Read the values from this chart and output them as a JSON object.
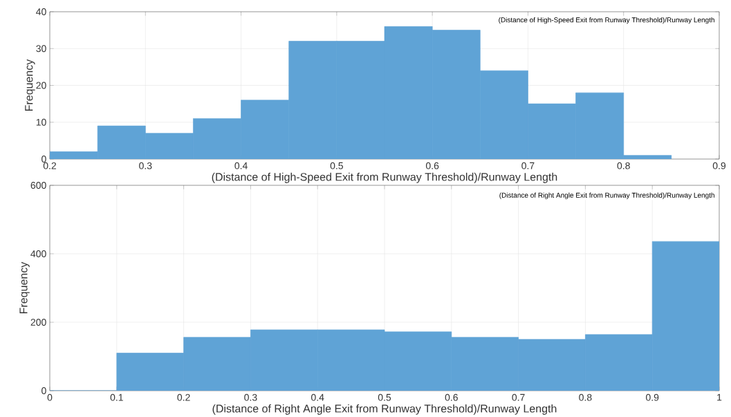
{
  "chart_data": [
    {
      "type": "histogram",
      "xlabel": "(Distance of High-Speed Exit from Runway Threshold)/Runway Length",
      "ylabel": "Frequency",
      "annotations": [
        "(Distance of High-Speed Exit from Runway Threshold)/Runway Length"
      ],
      "color": "#5fa3d6",
      "bins": [
        0.2,
        0.25,
        0.3,
        0.35,
        0.4,
        0.45,
        0.5,
        0.55,
        0.6,
        0.65,
        0.7,
        0.75,
        0.8,
        0.85
      ],
      "values": [
        2,
        9,
        7,
        11,
        16,
        32,
        32,
        36,
        35,
        24,
        15,
        18,
        1
      ],
      "xlim": [
        0.2,
        0.9
      ],
      "ylim": [
        0,
        40
      ],
      "xticks": [
        0.2,
        0.3,
        0.4,
        0.5,
        0.6,
        0.7,
        0.8,
        0.9
      ],
      "yticks": [
        0,
        10,
        20,
        30,
        40
      ],
      "grid": true
    },
    {
      "type": "histogram",
      "xlabel": "(Distance of Right Angle Exit from Runway Threshold)/Runway Length",
      "ylabel": "Frequency",
      "annotations": [
        "(Distance of Right Angle Exit from Runway Threshold)/Runway Length"
      ],
      "color": "#5fa3d6",
      "bins": [
        0,
        0.1,
        0.2,
        0.3,
        0.4,
        0.5,
        0.6,
        0.7,
        0.8,
        0.9,
        1
      ],
      "values": [
        0,
        110,
        156,
        178,
        178,
        172,
        156,
        150,
        164,
        436
      ],
      "xlim": [
        0,
        1
      ],
      "ylim": [
        0,
        600
      ],
      "xticks": [
        0,
        0.1,
        0.2,
        0.3,
        0.4,
        0.5,
        0.6,
        0.7,
        0.8,
        0.9,
        1
      ],
      "yticks": [
        0,
        200,
        400,
        600
      ],
      "grid": true
    }
  ]
}
